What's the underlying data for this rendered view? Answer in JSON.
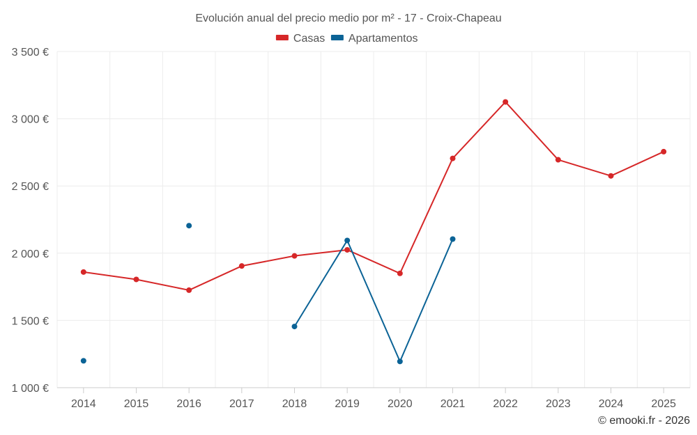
{
  "chart_data": {
    "type": "line",
    "title": "Evolución anual del precio medio por m² - 17 - Croix-Chapeau",
    "categories": [
      "2014",
      "2015",
      "2016",
      "2017",
      "2018",
      "2019",
      "2020",
      "2021",
      "2022",
      "2023",
      "2024",
      "2025"
    ],
    "ylim": [
      1000,
      3500
    ],
    "yticks": [
      1000,
      1500,
      2000,
      2500,
      3000,
      3500
    ],
    "ytick_labels": [
      "1 000 €",
      "1 500 €",
      "2 000 €",
      "2 500 €",
      "3 000 €",
      "3 500 €"
    ],
    "grid": true,
    "legend_position": "top-center",
    "series": [
      {
        "name": "Casas",
        "color": "#d62728",
        "values": [
          1860,
          1805,
          1725,
          1905,
          1980,
          2025,
          1850,
          2705,
          3125,
          2695,
          2575,
          2755
        ]
      },
      {
        "name": "Apartamentos",
        "color": "#0b6396",
        "values": [
          1200,
          null,
          2205,
          null,
          1455,
          2095,
          1195,
          2105,
          null,
          null,
          null,
          null
        ]
      }
    ]
  },
  "credit": "© emooki.fr - 2026"
}
